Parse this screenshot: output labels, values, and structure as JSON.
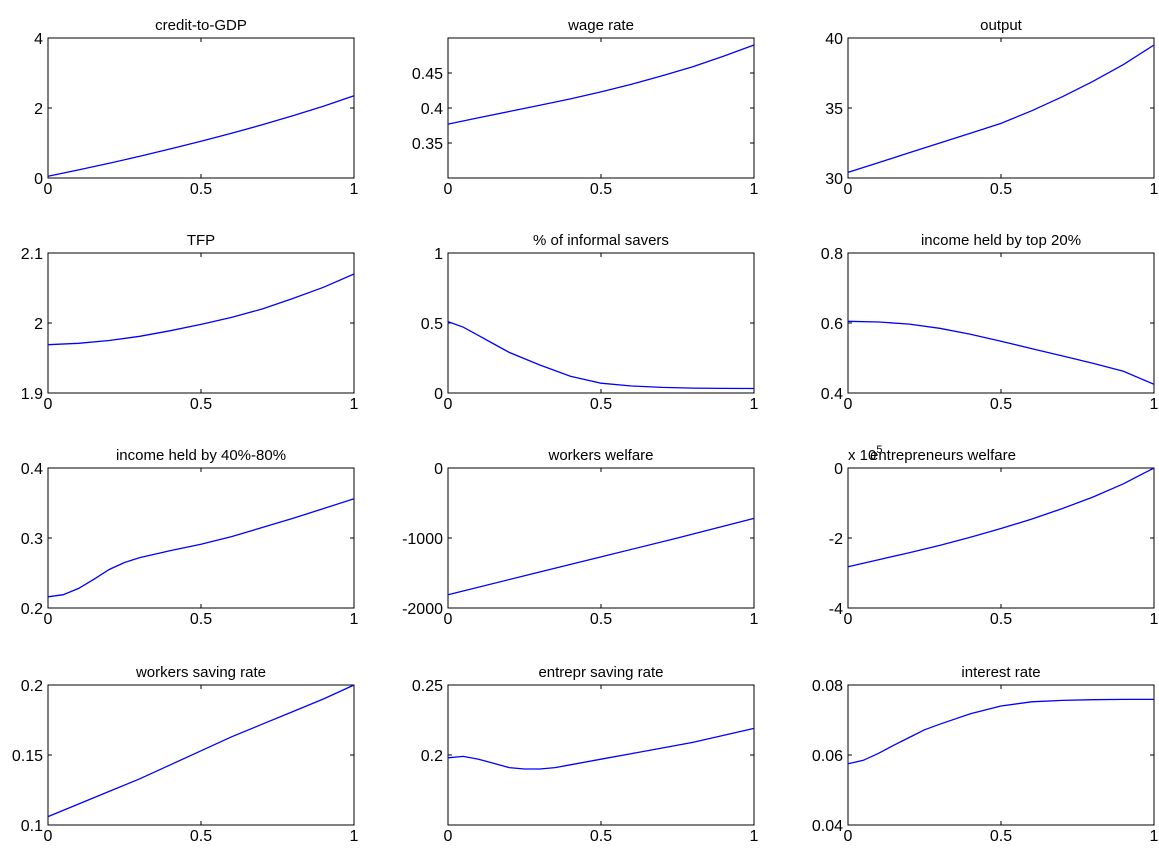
{
  "colors": {
    "line": "#0000ff",
    "axes": "#000000",
    "background": "#ffffff"
  },
  "chart_data": [
    {
      "type": "line",
      "title": "credit-to-GDP",
      "xlim": [
        0,
        1
      ],
      "ylim": [
        0,
        4
      ],
      "xticks": [
        0,
        0.5,
        1
      ],
      "xticklabels": [
        "0",
        "0.5",
        "1"
      ],
      "yticks": [
        0,
        2,
        4
      ],
      "yticklabels": [
        "0",
        "2",
        "4"
      ],
      "grid": false,
      "exponent_label": "",
      "x": [
        0,
        0.1,
        0.2,
        0.3,
        0.4,
        0.5,
        0.6,
        0.7,
        0.8,
        0.9,
        1
      ],
      "y": [
        0.05,
        0.23,
        0.42,
        0.62,
        0.83,
        1.05,
        1.28,
        1.52,
        1.78,
        2.05,
        2.35
      ]
    },
    {
      "type": "line",
      "title": "wage rate",
      "xlim": [
        0,
        1
      ],
      "ylim": [
        0.3,
        0.5
      ],
      "xticks": [
        0,
        0.5,
        1
      ],
      "xticklabels": [
        "0",
        "0.5",
        "1"
      ],
      "yticks": [
        0.35,
        0.4,
        0.45
      ],
      "yticklabels": [
        "0.35",
        "0.4",
        "0.45"
      ],
      "grid": false,
      "exponent_label": "",
      "x": [
        0,
        0.1,
        0.2,
        0.3,
        0.4,
        0.5,
        0.6,
        0.7,
        0.8,
        0.9,
        1
      ],
      "y": [
        0.377,
        0.386,
        0.395,
        0.404,
        0.413,
        0.423,
        0.434,
        0.446,
        0.459,
        0.474,
        0.49
      ]
    },
    {
      "type": "line",
      "title": "output",
      "xlim": [
        0,
        1
      ],
      "ylim": [
        30,
        40
      ],
      "xticks": [
        0,
        0.5,
        1
      ],
      "xticklabels": [
        "0",
        "0.5",
        "1"
      ],
      "yticks": [
        30,
        35,
        40
      ],
      "yticklabels": [
        "30",
        "35",
        "40"
      ],
      "grid": false,
      "exponent_label": "",
      "x": [
        0,
        0.1,
        0.2,
        0.3,
        0.4,
        0.5,
        0.6,
        0.7,
        0.8,
        0.9,
        1
      ],
      "y": [
        30.4,
        31.1,
        31.8,
        32.5,
        33.2,
        33.9,
        34.8,
        35.8,
        36.9,
        38.1,
        39.5
      ]
    },
    {
      "type": "line",
      "title": "TFP",
      "xlim": [
        0,
        1
      ],
      "ylim": [
        1.9,
        2.1
      ],
      "xticks": [
        0,
        0.5,
        1
      ],
      "xticklabels": [
        "0",
        "0.5",
        "1"
      ],
      "yticks": [
        1.9,
        2,
        2.1
      ],
      "yticklabels": [
        "1.9",
        "2",
        "2.1"
      ],
      "grid": false,
      "exponent_label": "",
      "x": [
        0,
        0.1,
        0.2,
        0.3,
        0.4,
        0.5,
        0.6,
        0.7,
        0.8,
        0.9,
        1
      ],
      "y": [
        1.969,
        1.971,
        1.975,
        1.981,
        1.989,
        1.998,
        2.008,
        2.02,
        2.035,
        2.051,
        2.07
      ]
    },
    {
      "type": "line",
      "title": "% of informal savers",
      "xlim": [
        0,
        1
      ],
      "ylim": [
        0,
        1
      ],
      "xticks": [
        0,
        0.5,
        1
      ],
      "xticklabels": [
        "0",
        "0.5",
        "1"
      ],
      "yticks": [
        0,
        0.5,
        1
      ],
      "yticklabels": [
        "0",
        "0.5",
        "1"
      ],
      "grid": false,
      "exponent_label": "",
      "x": [
        0,
        0.05,
        0.1,
        0.15,
        0.2,
        0.3,
        0.4,
        0.5,
        0.6,
        0.7,
        0.8,
        0.9,
        1
      ],
      "y": [
        0.51,
        0.47,
        0.41,
        0.35,
        0.29,
        0.2,
        0.12,
        0.07,
        0.05,
        0.04,
        0.035,
        0.033,
        0.032
      ]
    },
    {
      "type": "line",
      "title": "income held by top 20%",
      "xlim": [
        0,
        1
      ],
      "ylim": [
        0.4,
        0.8
      ],
      "xticks": [
        0,
        0.5,
        1
      ],
      "xticklabels": [
        "0",
        "0.5",
        "1"
      ],
      "yticks": [
        0.4,
        0.6,
        0.8
      ],
      "yticklabels": [
        "0.4",
        "0.6",
        "0.8"
      ],
      "grid": false,
      "exponent_label": "",
      "x": [
        0,
        0.1,
        0.2,
        0.3,
        0.4,
        0.5,
        0.6,
        0.7,
        0.8,
        0.9,
        1
      ],
      "y": [
        0.605,
        0.603,
        0.597,
        0.585,
        0.568,
        0.548,
        0.527,
        0.506,
        0.485,
        0.462,
        0.425
      ]
    },
    {
      "type": "line",
      "title": "income held by 40%-80%",
      "xlim": [
        0,
        1
      ],
      "ylim": [
        0.2,
        0.4
      ],
      "xticks": [
        0,
        0.5,
        1
      ],
      "xticklabels": [
        "0",
        "0.5",
        "1"
      ],
      "yticks": [
        0.2,
        0.3,
        0.4
      ],
      "yticklabels": [
        "0.2",
        "0.3",
        "0.4"
      ],
      "grid": false,
      "exponent_label": "",
      "x": [
        0,
        0.05,
        0.1,
        0.15,
        0.2,
        0.25,
        0.3,
        0.4,
        0.5,
        0.6,
        0.7,
        0.8,
        0.9,
        1
      ],
      "y": [
        0.216,
        0.219,
        0.228,
        0.241,
        0.255,
        0.265,
        0.272,
        0.282,
        0.291,
        0.302,
        0.315,
        0.328,
        0.342,
        0.356
      ]
    },
    {
      "type": "line",
      "title": "workers welfare",
      "xlim": [
        0,
        1
      ],
      "ylim": [
        -2000,
        0
      ],
      "xticks": [
        0,
        0.5,
        1
      ],
      "xticklabels": [
        "0",
        "0.5",
        "1"
      ],
      "yticks": [
        -2000,
        -1000,
        0
      ],
      "yticklabels": [
        "-2000",
        "-1000",
        "0"
      ],
      "grid": false,
      "exponent_label": "",
      "x": [
        0,
        0.25,
        0.5,
        0.75,
        1
      ],
      "y": [
        -1810,
        -1540,
        -1270,
        -1000,
        -720
      ]
    },
    {
      "type": "line",
      "title": "entrepreneurs welfare",
      "xlim": [
        0,
        1
      ],
      "ylim": [
        -4,
        0
      ],
      "xticks": [
        0,
        0.5,
        1
      ],
      "xticklabels": [
        "0",
        "0.5",
        "1"
      ],
      "yticks": [
        -4,
        -2,
        0
      ],
      "yticklabels": [
        "-4",
        "-2",
        "0"
      ],
      "grid": false,
      "exponent_label": "x 10",
      "exponent_power": "5",
      "x": [
        0,
        0.1,
        0.2,
        0.3,
        0.4,
        0.5,
        0.6,
        0.7,
        0.8,
        0.9,
        1
      ],
      "y": [
        -2.82,
        -2.62,
        -2.42,
        -2.21,
        -1.98,
        -1.73,
        -1.46,
        -1.16,
        -0.83,
        -0.45,
        0
      ]
    },
    {
      "type": "line",
      "title": "workers saving rate",
      "xlim": [
        0,
        1
      ],
      "ylim": [
        0.1,
        0.2
      ],
      "xticks": [
        0,
        0.5,
        1
      ],
      "xticklabels": [
        "0",
        "0.5",
        "1"
      ],
      "yticks": [
        0.1,
        0.15,
        0.2
      ],
      "yticklabels": [
        "0.1",
        "0.15",
        "0.2"
      ],
      "grid": false,
      "exponent_label": "",
      "x": [
        0,
        0.1,
        0.2,
        0.3,
        0.4,
        0.5,
        0.6,
        0.7,
        0.8,
        0.9,
        1
      ],
      "y": [
        0.106,
        0.115,
        0.124,
        0.133,
        0.143,
        0.153,
        0.163,
        0.172,
        0.181,
        0.19,
        0.2
      ]
    },
    {
      "type": "line",
      "title": "entrepr saving rate",
      "xlim": [
        0,
        1
      ],
      "ylim": [
        0.15,
        0.25
      ],
      "xticks": [
        0,
        0.5,
        1
      ],
      "xticklabels": [
        "0",
        "0.5",
        "1"
      ],
      "yticks": [
        0.2,
        0.25
      ],
      "yticklabels": [
        "0.2",
        "0.25"
      ],
      "grid": false,
      "exponent_label": "",
      "x": [
        0,
        0.05,
        0.1,
        0.15,
        0.2,
        0.25,
        0.3,
        0.35,
        0.4,
        0.5,
        0.6,
        0.7,
        0.8,
        0.9,
        1
      ],
      "y": [
        0.198,
        0.199,
        0.197,
        0.194,
        0.191,
        0.19,
        0.19,
        0.191,
        0.193,
        0.197,
        0.201,
        0.205,
        0.209,
        0.214,
        0.219
      ]
    },
    {
      "type": "line",
      "title": "interest rate",
      "xlim": [
        0,
        1
      ],
      "ylim": [
        0.04,
        0.08
      ],
      "xticks": [
        0,
        0.5,
        1
      ],
      "xticklabels": [
        "0",
        "0.5",
        "1"
      ],
      "yticks": [
        0.04,
        0.06,
        0.08
      ],
      "yticklabels": [
        "0.04",
        "0.06",
        "0.08"
      ],
      "grid": false,
      "exponent_label": "",
      "x": [
        0,
        0.05,
        0.1,
        0.15,
        0.2,
        0.25,
        0.3,
        0.4,
        0.5,
        0.6,
        0.7,
        0.8,
        0.9,
        1
      ],
      "y": [
        0.0575,
        0.0585,
        0.0605,
        0.0628,
        0.065,
        0.0672,
        0.0688,
        0.0718,
        0.074,
        0.0752,
        0.0756,
        0.0758,
        0.0759,
        0.0759
      ]
    }
  ]
}
